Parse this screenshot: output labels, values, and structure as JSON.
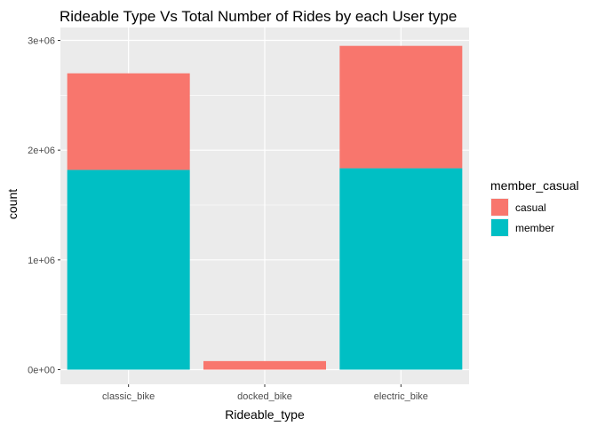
{
  "chart_data": {
    "type": "bar",
    "stacked": true,
    "title": "Rideable Type Vs Total Number of Rides by each User type",
    "xlabel": "Rideable_type",
    "ylabel": "count",
    "categories": [
      "classic_bike",
      "docked_bike",
      "electric_bike"
    ],
    "series": [
      {
        "name": "member",
        "values": [
          1820000,
          0,
          1835000
        ],
        "color": "#00BFC4"
      },
      {
        "name": "casual",
        "values": [
          880000,
          78000,
          1115000
        ],
        "color": "#F8766D"
      }
    ],
    "ylim": [
      0,
      3000000
    ],
    "yticks": [
      0,
      1000000,
      2000000,
      3000000
    ],
    "ytick_labels": [
      "0e+00",
      "1e+06",
      "2e+06",
      "3e+06"
    ],
    "grid": true,
    "legend": {
      "title": "member_casual",
      "placement": "right",
      "entries": [
        {
          "label": "casual",
          "color": "#F8766D"
        },
        {
          "label": "member",
          "color": "#00BFC4"
        }
      ]
    },
    "panel_background": "#EBEBEB",
    "grid_color": "#FFFFFF"
  }
}
